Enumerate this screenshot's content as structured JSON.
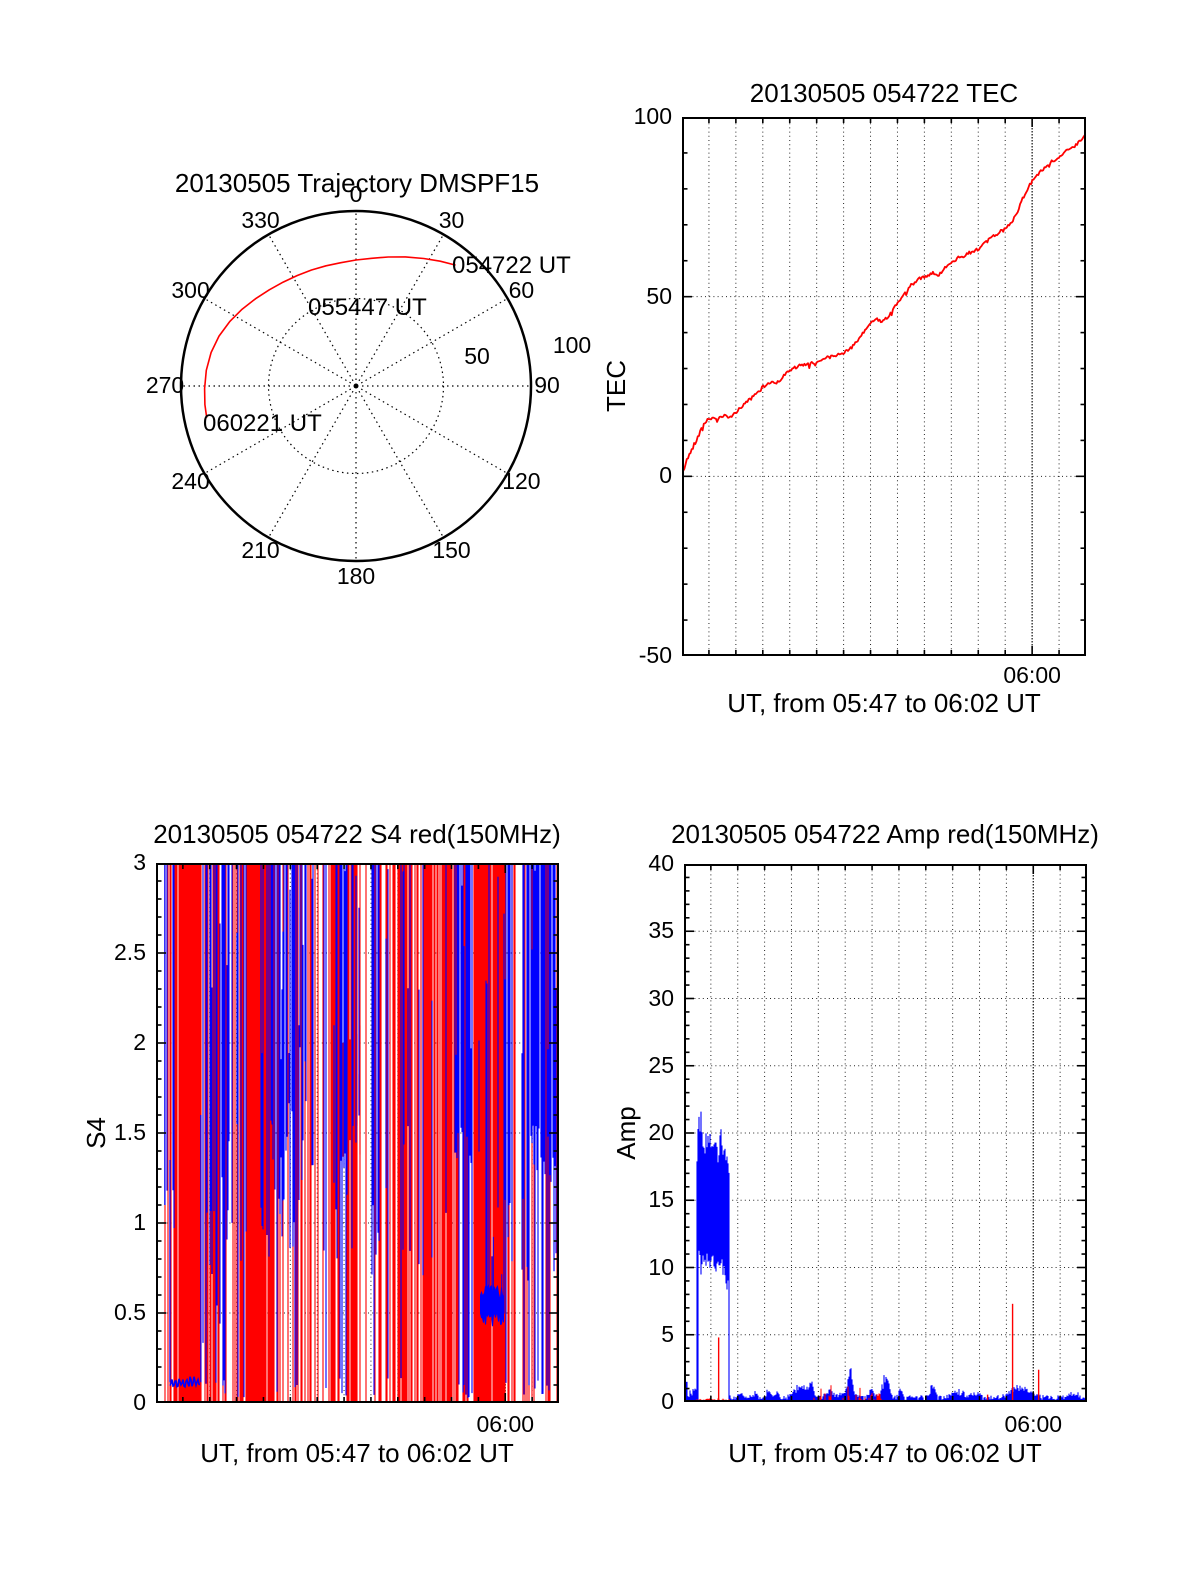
{
  "figure": {
    "background": "#ffffff",
    "foreground": "#000000"
  },
  "chart_data": [
    {
      "id": "trajectory",
      "type": "line-polar",
      "title": "20130505 Trajectory DMSPF15",
      "color": "#ff0000",
      "angle_labels": [
        "0",
        "30",
        "60",
        "90",
        "120",
        "150",
        "180",
        "210",
        "240",
        "270",
        "300",
        "330"
      ],
      "radial_ticks": [
        {
          "label": "50",
          "r": 50
        },
        {
          "label": "100",
          "r": 100
        }
      ],
      "time_labels": [
        {
          "label": "054722 UT"
        },
        {
          "label": "055447 UT"
        },
        {
          "label": "060221 UT"
        }
      ],
      "trajectory_az_r": [
        [
          39.5,
          89.5
        ],
        [
          34,
          86
        ],
        [
          28,
          82.5
        ],
        [
          21,
          79
        ],
        [
          14,
          76
        ],
        [
          7,
          73.5
        ],
        [
          0,
          72
        ],
        [
          -7,
          71
        ],
        [
          -14,
          70.8
        ],
        [
          -21,
          71
        ],
        [
          -28,
          71.5
        ],
        [
          -35,
          72.5
        ],
        [
          -42,
          74
        ],
        [
          -49,
          76
        ],
        [
          -56,
          78.5
        ],
        [
          -63,
          81
        ],
        [
          -70,
          83.3
        ],
        [
          -77,
          85
        ],
        [
          -84,
          86
        ],
        [
          -91,
          86.5
        ],
        [
          -97,
          87
        ],
        [
          -102,
          87.2
        ]
      ]
    },
    {
      "id": "tec",
      "type": "line",
      "title": "20130505 054722 TEC",
      "ylabel": "TEC",
      "xlabel": "UT, from 05:47 to 06:02 UT",
      "xtick_label": "06:00",
      "xtick_minute": 13,
      "x_minutes": 15,
      "ylim": [
        -50,
        100
      ],
      "yticks": [
        {
          "label": "100",
          "v": 100
        },
        {
          "label": "50",
          "v": 50
        },
        {
          "label": "0",
          "v": 0
        },
        {
          "label": "-50",
          "v": -50
        }
      ],
      "ygrid": [
        0,
        50
      ],
      "yminor": 10,
      "color": "#ff0000",
      "series": [
        [
          0,
          0
        ],
        [
          0.15,
          4
        ],
        [
          0.3,
          6.5
        ],
        [
          0.5,
          9.5
        ],
        [
          0.65,
          12
        ],
        [
          0.8,
          14.5
        ],
        [
          0.95,
          15.8
        ],
        [
          1.1,
          16.3
        ],
        [
          1.25,
          15.6
        ],
        [
          1.4,
          16.2
        ],
        [
          1.55,
          17.0
        ],
        [
          1.7,
          16.2
        ],
        [
          1.85,
          16.6
        ],
        [
          2.0,
          17.8
        ],
        [
          2.2,
          19.3
        ],
        [
          2.4,
          20.8
        ],
        [
          2.6,
          21.8
        ],
        [
          2.8,
          23.2
        ],
        [
          3.0,
          24.8
        ],
        [
          3.2,
          25.8
        ],
        [
          3.35,
          26.3
        ],
        [
          3.5,
          26.0
        ],
        [
          3.7,
          27.3
        ],
        [
          3.9,
          28.8
        ],
        [
          4.1,
          30.0
        ],
        [
          4.3,
          30.6
        ],
        [
          4.5,
          30.9
        ],
        [
          4.7,
          31.2
        ],
        [
          4.9,
          31.6
        ],
        [
          5.1,
          31.8
        ],
        [
          5.25,
          32.8
        ],
        [
          5.4,
          33.4
        ],
        [
          5.55,
          33.2
        ],
        [
          5.7,
          33.6
        ],
        [
          5.85,
          33.8
        ],
        [
          6.0,
          34.5
        ],
        [
          6.15,
          35.3
        ],
        [
          6.3,
          35.8
        ],
        [
          6.5,
          37.5
        ],
        [
          6.7,
          39.5
        ],
        [
          6.9,
          41.8
        ],
        [
          7.1,
          43.3
        ],
        [
          7.25,
          43.8
        ],
        [
          7.4,
          42.8
        ],
        [
          7.55,
          43.9
        ],
        [
          7.7,
          44.8
        ],
        [
          7.85,
          46.5
        ],
        [
          8.0,
          48.2
        ],
        [
          8.15,
          49.7
        ],
        [
          8.3,
          51.0
        ],
        [
          8.5,
          52.8
        ],
        [
          8.7,
          54.5
        ],
        [
          8.9,
          55.3
        ],
        [
          9.1,
          55.8
        ],
        [
          9.3,
          56.8
        ],
        [
          9.45,
          56.0
        ],
        [
          9.6,
          56.3
        ],
        [
          9.8,
          58.2
        ],
        [
          10.0,
          59.8
        ],
        [
          10.2,
          60.5
        ],
        [
          10.4,
          61.2
        ],
        [
          10.6,
          62.0
        ],
        [
          10.8,
          62.6
        ],
        [
          11.0,
          63.3
        ],
        [
          11.2,
          64.5
        ],
        [
          11.4,
          65.8
        ],
        [
          11.6,
          67.0
        ],
        [
          11.8,
          68.0
        ],
        [
          12.0,
          68.8
        ],
        [
          12.15,
          70.0
        ],
        [
          12.3,
          71.5
        ],
        [
          12.45,
          73.5
        ],
        [
          12.6,
          76.5
        ],
        [
          12.75,
          79.0
        ],
        [
          12.9,
          81.0
        ],
        [
          13.05,
          82.5
        ],
        [
          13.2,
          84.0
        ],
        [
          13.35,
          85.0
        ],
        [
          13.5,
          85.8
        ],
        [
          13.65,
          86.5
        ],
        [
          13.8,
          87.8
        ],
        [
          13.95,
          88.6
        ],
        [
          14.1,
          89.3
        ],
        [
          14.2,
          90.2
        ],
        [
          14.35,
          90.8
        ],
        [
          14.5,
          91.5
        ],
        [
          14.65,
          92.5
        ],
        [
          14.8,
          93.5
        ],
        [
          15.0,
          95.0
        ]
      ]
    },
    {
      "id": "s4",
      "type": "scintillation-stripes",
      "title": "20130505 054722 S4 red(150MHz)",
      "ylabel": "S4",
      "xlabel": "UT, from 05:47 to 06:02 UT",
      "xtick_label": "06:00",
      "xtick_minute": 13,
      "x_minutes": 15,
      "ylim": [
        0,
        3
      ],
      "yticks": [
        {
          "label": "3",
          "v": 3
        },
        {
          "label": "2.5",
          "v": 2.5
        },
        {
          "label": "2",
          "v": 2
        },
        {
          "label": "1.5",
          "v": 1.5
        },
        {
          "label": "1",
          "v": 1
        },
        {
          "label": "0.5",
          "v": 0.5
        },
        {
          "label": "0",
          "v": 0
        }
      ],
      "ygrid": [
        0.5,
        1,
        1.5,
        2,
        2.5
      ],
      "yminor": 0.1,
      "red_color": "#ff0000",
      "blue_color": "#0000ff",
      "regions": [
        [
          0,
          0.15,
          0,
          0,
          0,
          0,
          0
        ],
        [
          0.15,
          0.5,
          0.45,
          0.1,
          1.1,
          1.5,
          0
        ],
        [
          0.5,
          0.95,
          0.7,
          0.06,
          0.9,
          1.4,
          0.1
        ],
        [
          0.95,
          1.7,
          0.93,
          0.04,
          1.0,
          1.5,
          0
        ],
        [
          1.7,
          2.6,
          0.45,
          0.45,
          0.3,
          1.4,
          0.15
        ],
        [
          2.6,
          3.35,
          0.5,
          0.55,
          0.7,
          1.6,
          0.1
        ],
        [
          3.35,
          4.1,
          0.88,
          0.15,
          0.7,
          1.3,
          0.1
        ],
        [
          4.1,
          4.65,
          0.45,
          0.55,
          0.8,
          1.6,
          0.1
        ],
        [
          4.65,
          5.35,
          0.4,
          0.75,
          0.85,
          1.7,
          0.12
        ],
        [
          5.35,
          5.95,
          0.6,
          0.35,
          1.2,
          2.0,
          0.08
        ],
        [
          5.95,
          6.55,
          0.22,
          0.18,
          0.5,
          1.2,
          0.3
        ],
        [
          6.55,
          7.6,
          0.5,
          0.35,
          0.8,
          1.8,
          0.1
        ],
        [
          7.6,
          8.3,
          0.28,
          0.2,
          0.55,
          1.3,
          0.25
        ],
        [
          8.3,
          9.45,
          0.62,
          0.25,
          0.8,
          1.6,
          0.15
        ],
        [
          9.45,
          9.85,
          0.45,
          0.3,
          0.55,
          1.2,
          0.2
        ],
        [
          9.85,
          11.1,
          0.85,
          0.18,
          0.7,
          1.5,
          0.15
        ],
        [
          11.1,
          11.8,
          0.22,
          0.95,
          1.3,
          1.55,
          0.35
        ],
        [
          11.8,
          13.0,
          0.93,
          0.22,
          0.4,
          1.5,
          0.1
        ],
        [
          13.0,
          13.9,
          0.45,
          0.45,
          0.3,
          1.5,
          0.2
        ],
        [
          13.9,
          14.8,
          0.25,
          0.8,
          1.2,
          1.55,
          0.35
        ],
        [
          14.8,
          15.01,
          0.5,
          0.6,
          0.5,
          1.4,
          0.2
        ]
      ],
      "features": {
        "blue_low_line": {
          "t0": 0.52,
          "t1": 1.67,
          "value": 0.115
        },
        "blue_fuzz_band": {
          "t0": 12.08,
          "t1": 12.95,
          "center": 0.55,
          "half_width": 0.09
        },
        "red_mid_blob": {
          "t0": 6.5,
          "t1": 7.6,
          "v0": 1.35,
          "v1": 2.1,
          "density": 0.5
        },
        "left_blue_spike": {
          "t": 0.33,
          "top": 3,
          "bottom": 1.1
        }
      }
    },
    {
      "id": "amp",
      "type": "area-noise",
      "title": "20130505 054722 Amp red(150MHz)",
      "ylabel": "Amp",
      "xlabel": "UT, from 05:47 to 06:02 UT",
      "xtick_label": "06:00",
      "xtick_minute": 13,
      "x_minutes": 15,
      "ylim": [
        0,
        40
      ],
      "yticks": [
        {
          "label": "40",
          "v": 40
        },
        {
          "label": "35",
          "v": 35
        },
        {
          "label": "30",
          "v": 30
        },
        {
          "label": "25",
          "v": 25
        },
        {
          "label": "20",
          "v": 20
        },
        {
          "label": "15",
          "v": 15
        },
        {
          "label": "10",
          "v": 10
        },
        {
          "label": "5",
          "v": 5
        },
        {
          "label": "0",
          "v": 0
        }
      ],
      "ygrid": [
        5,
        10,
        15,
        20,
        25,
        30,
        35
      ],
      "yminor": 1,
      "red_color": "#ff0000",
      "blue_color": "#0000ff",
      "blob": {
        "t0": 0.48,
        "t1": 1.71,
        "top_env": [
          [
            0.48,
            17.2
          ],
          [
            0.55,
            19.6
          ],
          [
            0.62,
            21.5
          ],
          [
            0.68,
            20.2
          ],
          [
            0.75,
            18.9
          ],
          [
            0.85,
            19.4
          ],
          [
            0.95,
            19.0
          ],
          [
            1.05,
            18.6
          ],
          [
            1.15,
            19.3
          ],
          [
            1.25,
            18.4
          ],
          [
            1.35,
            18.9
          ],
          [
            1.45,
            18.1
          ],
          [
            1.55,
            18.5
          ],
          [
            1.62,
            17.9
          ],
          [
            1.71,
            17.5
          ]
        ],
        "bot_env": [
          [
            0.48,
            0.15
          ],
          [
            0.5,
            11.2
          ],
          [
            0.58,
            10.6
          ],
          [
            0.68,
            10.9
          ],
          [
            0.78,
            10.3
          ],
          [
            0.88,
            10.8
          ],
          [
            0.98,
            10.2
          ],
          [
            1.08,
            10.7
          ],
          [
            1.18,
            10.1
          ],
          [
            1.28,
            10.6
          ],
          [
            1.38,
            10.0
          ],
          [
            1.48,
            10.4
          ],
          [
            1.55,
            9.4
          ],
          [
            1.62,
            8.6
          ],
          [
            1.66,
            10.2
          ],
          [
            1.71,
            0.2
          ]
        ]
      },
      "blue_baseline": {
        "pre_blob_max": 1.2,
        "base": 0.12,
        "spread": 0.38
      },
      "blue_bumps": [
        [
          2.1,
          0.18,
          0.35
        ],
        [
          2.65,
          0.12,
          0.3
        ],
        [
          3.15,
          0.1,
          0.55
        ],
        [
          3.45,
          0.12,
          0.4
        ],
        [
          4.35,
          0.3,
          1.0
        ],
        [
          4.75,
          0.12,
          0.9
        ],
        [
          5.4,
          0.18,
          0.5
        ],
        [
          6.0,
          0.3,
          0.4
        ],
        [
          6.2,
          0.13,
          1.5
        ],
        [
          7.0,
          0.12,
          0.5
        ],
        [
          7.5,
          0.16,
          1.5
        ],
        [
          8.05,
          0.1,
          0.5
        ],
        [
          9.25,
          0.1,
          1.2
        ],
        [
          10.2,
          0.4,
          0.4
        ],
        [
          10.9,
          0.15,
          0.35
        ],
        [
          12.5,
          0.5,
          0.8
        ],
        [
          14.55,
          0.25,
          0.3
        ]
      ],
      "red_baseline": {
        "t0": 0.5,
        "t1": 1.71,
        "level": 0.18
      },
      "red_noise_ranges": [
        [
          4.8,
          5.5,
          0.5
        ],
        [
          5.9,
          7.35,
          0.5
        ]
      ],
      "red_spikes": [
        [
          1.29,
          4.8
        ],
        [
          11.3,
          0.55
        ],
        [
          12.23,
          7.3
        ],
        [
          13.2,
          2.4
        ]
      ]
    }
  ]
}
